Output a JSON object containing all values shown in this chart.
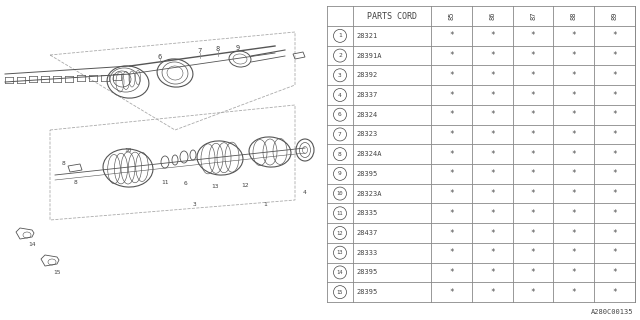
{
  "bg_color": "#ffffff",
  "table_header": "PARTS CORD",
  "year_cols": [
    "85",
    "86",
    "87",
    "88",
    "89"
  ],
  "rows": [
    {
      "num": "1",
      "code": "28321",
      "vals": [
        "*",
        "*",
        "*",
        "*",
        "*"
      ]
    },
    {
      "num": "2",
      "code": "28391A",
      "vals": [
        "*",
        "*",
        "*",
        "*",
        "*"
      ]
    },
    {
      "num": "3",
      "code": "28392",
      "vals": [
        "*",
        "*",
        "*",
        "*",
        "*"
      ]
    },
    {
      "num": "4",
      "code": "28337",
      "vals": [
        "*",
        "*",
        "*",
        "*",
        "*"
      ]
    },
    {
      "num": "6",
      "code": "28324",
      "vals": [
        "*",
        "*",
        "*",
        "*",
        "*"
      ]
    },
    {
      "num": "7",
      "code": "28323",
      "vals": [
        "*",
        "*",
        "*",
        "*",
        "*"
      ]
    },
    {
      "num": "8",
      "code": "28324A",
      "vals": [
        "*",
        "*",
        "*",
        "*",
        "*"
      ]
    },
    {
      "num": "9",
      "code": "28395",
      "vals": [
        "*",
        "*",
        "*",
        "*",
        "*"
      ]
    },
    {
      "num": "10",
      "code": "28323A",
      "vals": [
        "*",
        "*",
        "*",
        "*",
        "*"
      ]
    },
    {
      "num": "11",
      "code": "28335",
      "vals": [
        "*",
        "*",
        "*",
        "*",
        "*"
      ]
    },
    {
      "num": "12",
      "code": "28437",
      "vals": [
        "*",
        "*",
        "*",
        "*",
        "*"
      ]
    },
    {
      "num": "13",
      "code": "28333",
      "vals": [
        "*",
        "*",
        "*",
        "*",
        "*"
      ]
    },
    {
      "num": "14",
      "code": "28395",
      "vals": [
        "*",
        "*",
        "*",
        "*",
        "*"
      ]
    },
    {
      "num": "15",
      "code": "28395",
      "vals": [
        "*",
        "*",
        "*",
        "*",
        "*"
      ]
    }
  ],
  "catalog_num": "A280C00135",
  "line_color": "#888888",
  "text_color": "#444444",
  "diag_color": "#555555",
  "dashed_color": "#aaaaaa"
}
